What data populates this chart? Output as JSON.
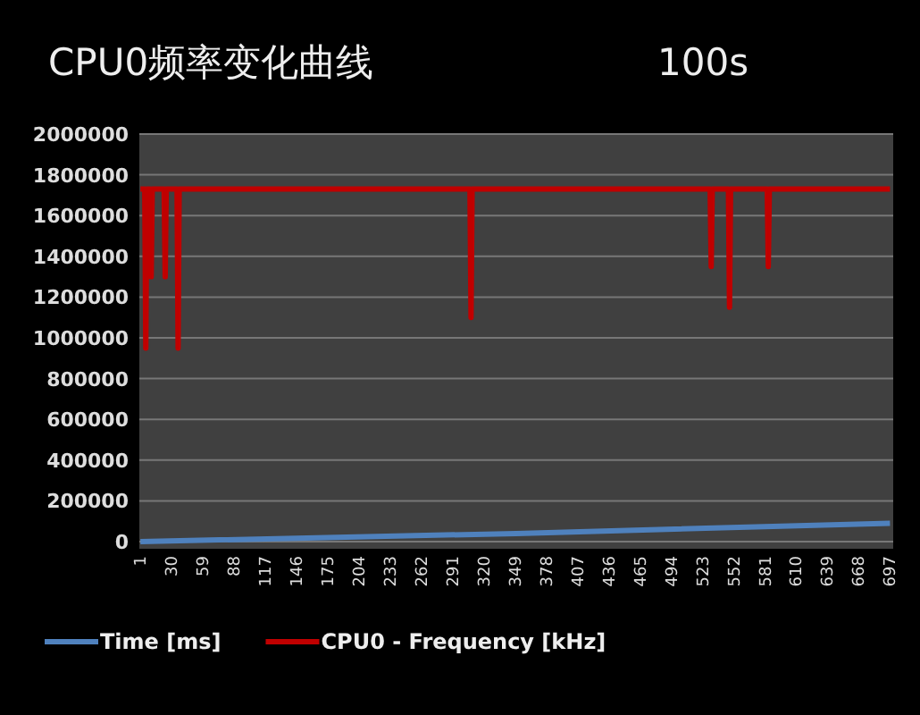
{
  "chart_data": {
    "type": "line",
    "title": "CPU0频率变化曲线",
    "subtitle": "100s",
    "xlim": [
      0,
      700
    ],
    "xticks": [
      1,
      30,
      59,
      88,
      117,
      146,
      175,
      204,
      233,
      262,
      291,
      320,
      349,
      378,
      407,
      436,
      465,
      494,
      523,
      552,
      581,
      610,
      639,
      668,
      697
    ],
    "ylim": [
      0,
      2000000
    ],
    "yticks": [
      0,
      200000,
      400000,
      600000,
      800000,
      1000000,
      1200000,
      1400000,
      1600000,
      1800000,
      2000000
    ],
    "grid": "y",
    "legend": "bottom",
    "marker": "none",
    "line_style": "solid",
    "series": [
      {
        "name": "Time  [ms]",
        "color": "#4f81bd",
        "x": [
          1,
          350,
          697
        ],
        "values": [
          0,
          40000,
          90000
        ]
      },
      {
        "name": "CPU0 - Frequency [kHz]",
        "color": "#c00000",
        "x": [
          1,
          5,
          6,
          7,
          10,
          11,
          12,
          23,
          24,
          25,
          35,
          36,
          37,
          307,
          308,
          309,
          530,
          531,
          532,
          547,
          548,
          549,
          583,
          584,
          585,
          697
        ],
        "values": [
          1730000,
          1730000,
          950000,
          1730000,
          1730000,
          1300000,
          1730000,
          1730000,
          1300000,
          1730000,
          1730000,
          950000,
          1730000,
          1730000,
          1100000,
          1730000,
          1730000,
          1350000,
          1730000,
          1730000,
          1150000,
          1730000,
          1730000,
          1350000,
          1730000,
          1730000
        ]
      }
    ]
  }
}
